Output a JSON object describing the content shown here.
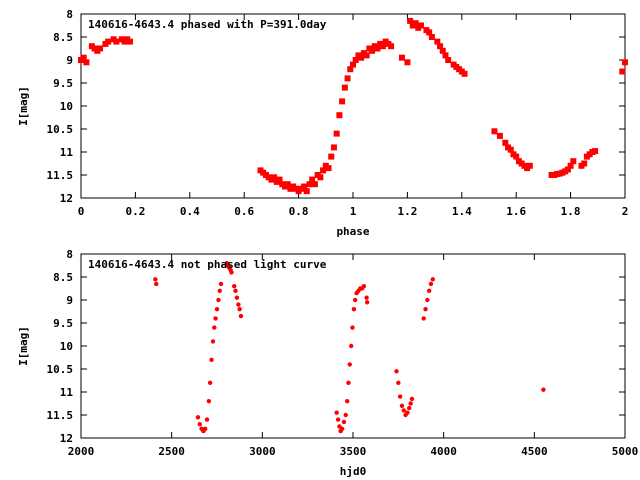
{
  "colors": {
    "points": "#ff0000",
    "axes": "#000000",
    "background": "#ffffff"
  },
  "chart_data": [
    {
      "type": "scatter",
      "title": "140616-4643.4 phased with P=391.0day",
      "xlabel": "phase",
      "ylabel": "I[mag]",
      "xlim": [
        0,
        2
      ],
      "ylim": [
        12,
        8
      ],
      "y_inverted": true,
      "grid": false,
      "xticks": [
        "0",
        "0.2",
        "0.4",
        "0.6",
        "0.8",
        "1",
        "1.2",
        "1.4",
        "1.6",
        "1.8",
        "2"
      ],
      "xtick_values": [
        0,
        0.2,
        0.4,
        0.6,
        0.8,
        1,
        1.2,
        1.4,
        1.6,
        1.8,
        2
      ],
      "yticks": [
        "8",
        "8.5",
        "9",
        "9.5",
        "10",
        "10.5",
        "11",
        "11.5",
        "12"
      ],
      "ytick_values": [
        8,
        8.5,
        9,
        9.5,
        10,
        10.5,
        11,
        11.5,
        12
      ],
      "marker": "square",
      "points": [
        [
          0.0,
          9.0
        ],
        [
          0.01,
          8.95
        ],
        [
          0.02,
          9.05
        ],
        [
          0.04,
          8.7
        ],
        [
          0.05,
          8.75
        ],
        [
          0.06,
          8.8
        ],
        [
          0.07,
          8.75
        ],
        [
          0.09,
          8.65
        ],
        [
          0.1,
          8.6
        ],
        [
          0.12,
          8.55
        ],
        [
          0.13,
          8.6
        ],
        [
          0.15,
          8.55
        ],
        [
          0.16,
          8.6
        ],
        [
          0.17,
          8.55
        ],
        [
          0.18,
          8.6
        ],
        [
          0.66,
          11.4
        ],
        [
          0.67,
          11.45
        ],
        [
          0.68,
          11.5
        ],
        [
          0.69,
          11.55
        ],
        [
          0.7,
          11.6
        ],
        [
          0.71,
          11.55
        ],
        [
          0.72,
          11.65
        ],
        [
          0.73,
          11.6
        ],
        [
          0.74,
          11.7
        ],
        [
          0.75,
          11.75
        ],
        [
          0.76,
          11.7
        ],
        [
          0.77,
          11.8
        ],
        [
          0.78,
          11.75
        ],
        [
          0.79,
          11.8
        ],
        [
          0.8,
          11.85
        ],
        [
          0.81,
          11.8
        ],
        [
          0.82,
          11.75
        ],
        [
          0.83,
          11.85
        ],
        [
          0.84,
          11.7
        ],
        [
          0.85,
          11.6
        ],
        [
          0.86,
          11.7
        ],
        [
          0.87,
          11.5
        ],
        [
          0.88,
          11.55
        ],
        [
          0.89,
          11.4
        ],
        [
          0.9,
          11.3
        ],
        [
          0.91,
          11.35
        ],
        [
          0.92,
          11.1
        ],
        [
          0.93,
          10.9
        ],
        [
          0.94,
          10.6
        ],
        [
          0.95,
          10.2
        ],
        [
          0.96,
          9.9
        ],
        [
          0.97,
          9.6
        ],
        [
          0.98,
          9.4
        ],
        [
          0.99,
          9.2
        ],
        [
          1.0,
          9.1
        ],
        [
          1.01,
          9.0
        ],
        [
          1.02,
          8.9
        ],
        [
          1.03,
          8.95
        ],
        [
          1.04,
          8.85
        ],
        [
          1.05,
          8.9
        ],
        [
          1.06,
          8.75
        ],
        [
          1.07,
          8.8
        ],
        [
          1.08,
          8.7
        ],
        [
          1.09,
          8.75
        ],
        [
          1.1,
          8.65
        ],
        [
          1.11,
          8.7
        ],
        [
          1.12,
          8.6
        ],
        [
          1.13,
          8.65
        ],
        [
          1.14,
          8.7
        ],
        [
          1.18,
          8.95
        ],
        [
          1.2,
          9.05
        ],
        [
          1.21,
          8.15
        ],
        [
          1.22,
          8.25
        ],
        [
          1.23,
          8.2
        ],
        [
          1.24,
          8.3
        ],
        [
          1.25,
          8.25
        ],
        [
          1.27,
          8.35
        ],
        [
          1.28,
          8.4
        ],
        [
          1.29,
          8.5
        ],
        [
          1.31,
          8.6
        ],
        [
          1.32,
          8.7
        ],
        [
          1.33,
          8.8
        ],
        [
          1.34,
          8.9
        ],
        [
          1.35,
          9.0
        ],
        [
          1.37,
          9.1
        ],
        [
          1.38,
          9.15
        ],
        [
          1.39,
          9.2
        ],
        [
          1.4,
          9.25
        ],
        [
          1.41,
          9.3
        ],
        [
          1.52,
          10.55
        ],
        [
          1.54,
          10.65
        ],
        [
          1.56,
          10.8
        ],
        [
          1.57,
          10.9
        ],
        [
          1.58,
          10.95
        ],
        [
          1.59,
          11.05
        ],
        [
          1.6,
          11.1
        ],
        [
          1.61,
          11.2
        ],
        [
          1.62,
          11.25
        ],
        [
          1.63,
          11.3
        ],
        [
          1.64,
          11.35
        ],
        [
          1.65,
          11.3
        ],
        [
          1.73,
          11.5
        ],
        [
          1.74,
          11.5
        ],
        [
          1.75,
          11.48
        ],
        [
          1.76,
          11.47
        ],
        [
          1.77,
          11.45
        ],
        [
          1.78,
          11.42
        ],
        [
          1.79,
          11.38
        ],
        [
          1.8,
          11.3
        ],
        [
          1.81,
          11.2
        ],
        [
          1.84,
          11.3
        ],
        [
          1.85,
          11.25
        ],
        [
          1.86,
          11.1
        ],
        [
          1.87,
          11.05
        ],
        [
          1.88,
          11.0
        ],
        [
          1.89,
          10.98
        ],
        [
          1.99,
          9.25
        ],
        [
          2.0,
          9.05
        ]
      ]
    },
    {
      "type": "scatter",
      "title": "140616-4643.4 not phased light curve",
      "xlabel": "hjd0",
      "ylabel": "I[mag]",
      "xlim": [
        2000,
        5000
      ],
      "ylim": [
        12,
        8
      ],
      "y_inverted": true,
      "grid": false,
      "xticks": [
        "2000",
        "2500",
        "3000",
        "3500",
        "4000",
        "4500",
        "5000"
      ],
      "xtick_values": [
        2000,
        2500,
        3000,
        3500,
        4000,
        4500,
        5000
      ],
      "yticks": [
        "8",
        "8.5",
        "9",
        "9.5",
        "10",
        "10.5",
        "11",
        "11.5",
        "12"
      ],
      "ytick_values": [
        8,
        8.5,
        9,
        9.5,
        10,
        10.5,
        11,
        11.5,
        12
      ],
      "marker": "dot",
      "points": [
        [
          2410,
          8.55
        ],
        [
          2415,
          8.65
        ],
        [
          2645,
          11.55
        ],
        [
          2655,
          11.7
        ],
        [
          2665,
          11.8
        ],
        [
          2675,
          11.85
        ],
        [
          2685,
          11.8
        ],
        [
          2695,
          11.6
        ],
        [
          2705,
          11.2
        ],
        [
          2712,
          10.8
        ],
        [
          2720,
          10.3
        ],
        [
          2728,
          9.9
        ],
        [
          2735,
          9.6
        ],
        [
          2742,
          9.4
        ],
        [
          2750,
          9.2
        ],
        [
          2758,
          9.0
        ],
        [
          2765,
          8.8
        ],
        [
          2772,
          8.65
        ],
        [
          2805,
          8.2
        ],
        [
          2812,
          8.25
        ],
        [
          2818,
          8.3
        ],
        [
          2825,
          8.35
        ],
        [
          2830,
          8.4
        ],
        [
          2845,
          8.7
        ],
        [
          2852,
          8.8
        ],
        [
          2860,
          8.95
        ],
        [
          2868,
          9.1
        ],
        [
          2875,
          9.2
        ],
        [
          2882,
          9.35
        ],
        [
          3410,
          11.45
        ],
        [
          3418,
          11.6
        ],
        [
          3425,
          11.75
        ],
        [
          3432,
          11.85
        ],
        [
          3440,
          11.8
        ],
        [
          3450,
          11.65
        ],
        [
          3460,
          11.5
        ],
        [
          3468,
          11.2
        ],
        [
          3475,
          10.8
        ],
        [
          3482,
          10.4
        ],
        [
          3490,
          10.0
        ],
        [
          3497,
          9.6
        ],
        [
          3505,
          9.2
        ],
        [
          3512,
          9.0
        ],
        [
          3520,
          8.85
        ],
        [
          3530,
          8.8
        ],
        [
          3540,
          8.75
        ],
        [
          3550,
          8.75
        ],
        [
          3560,
          8.7
        ],
        [
          3575,
          8.95
        ],
        [
          3578,
          9.05
        ],
        [
          3740,
          10.55
        ],
        [
          3750,
          10.8
        ],
        [
          3760,
          11.1
        ],
        [
          3770,
          11.3
        ],
        [
          3780,
          11.4
        ],
        [
          3790,
          11.5
        ],
        [
          3800,
          11.45
        ],
        [
          3810,
          11.35
        ],
        [
          3818,
          11.25
        ],
        [
          3825,
          11.15
        ],
        [
          3890,
          9.4
        ],
        [
          3900,
          9.2
        ],
        [
          3910,
          9.0
        ],
        [
          3920,
          8.8
        ],
        [
          3930,
          8.65
        ],
        [
          3940,
          8.55
        ],
        [
          4550,
          10.95
        ]
      ]
    }
  ]
}
